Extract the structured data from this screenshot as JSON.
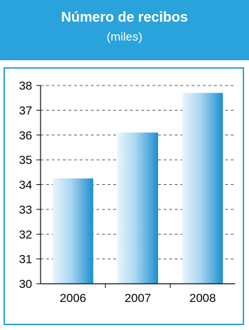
{
  "chart_data": {
    "type": "bar",
    "title": "Número de recibos",
    "subtitle": "(miles)",
    "categories": [
      "2006",
      "2007",
      "2008"
    ],
    "values": [
      34.25,
      36.1,
      37.7
    ],
    "ylim": [
      30,
      38
    ],
    "yticks": [
      "30",
      "31",
      "32",
      "33",
      "34",
      "35",
      "36",
      "37",
      "38"
    ],
    "grid": true,
    "legend": "none"
  },
  "colors": {
    "header_bg": "#2aa2dc",
    "frame_border": "#2aa2dc",
    "bar_light": "#e6f4fb",
    "bar_dark": "#1c8fd0"
  }
}
